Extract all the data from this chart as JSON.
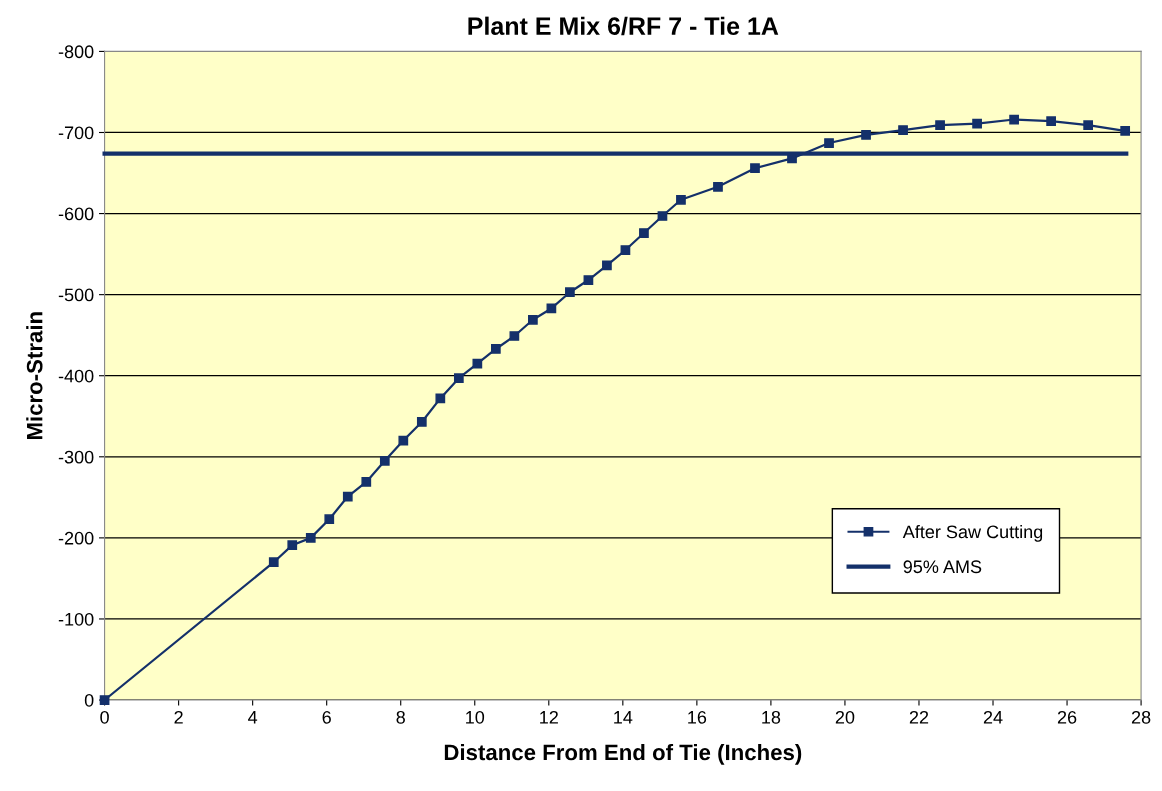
{
  "chart_data": {
    "type": "line",
    "title": "Plant E Mix 6/RF 7 - Tie 1A",
    "xlabel": "Distance From End of Tie (Inches)",
    "ylabel": "Micro-Strain",
    "xlim": [
      0,
      28
    ],
    "xticks": [
      0,
      2,
      4,
      6,
      8,
      10,
      12,
      14,
      16,
      18,
      20,
      22,
      24,
      26,
      28
    ],
    "ylim": [
      0,
      -800
    ],
    "yticks": [
      0,
      -100,
      -200,
      -300,
      -400,
      -500,
      -600,
      -700,
      -800
    ],
    "grid": "y",
    "legend": "right",
    "series": [
      {
        "name": "After Saw Cutting",
        "color": "#14306a",
        "marker": "square",
        "x": [
          0,
          4.57,
          5.07,
          5.57,
          6.07,
          6.57,
          7.07,
          7.57,
          8.07,
          8.57,
          9.07,
          9.57,
          10.07,
          10.57,
          11.07,
          11.57,
          12.07,
          12.57,
          13.07,
          13.57,
          14.07,
          14.57,
          15.07,
          15.57,
          16.57,
          17.57,
          18.57,
          19.57,
          20.57,
          21.57,
          22.57,
          23.57,
          24.57,
          25.57,
          26.57,
          27.57
        ],
        "values": [
          0,
          -170,
          -191,
          -200,
          -223,
          -251,
          -269,
          -295,
          -320,
          -343,
          -372,
          -397,
          -415,
          -433,
          -449,
          -469,
          -483,
          -503,
          -518,
          -536,
          -555,
          -576,
          -597,
          -617,
          -633,
          -656,
          -668,
          -687,
          -697,
          -703,
          -709,
          -711,
          -716,
          -714,
          -709,
          -702
        ]
      },
      {
        "name": "95% AMS",
        "color": "#14306a",
        "marker": "none",
        "x": [
          0,
          27.6
        ],
        "values": [
          -674,
          -674
        ]
      }
    ]
  }
}
